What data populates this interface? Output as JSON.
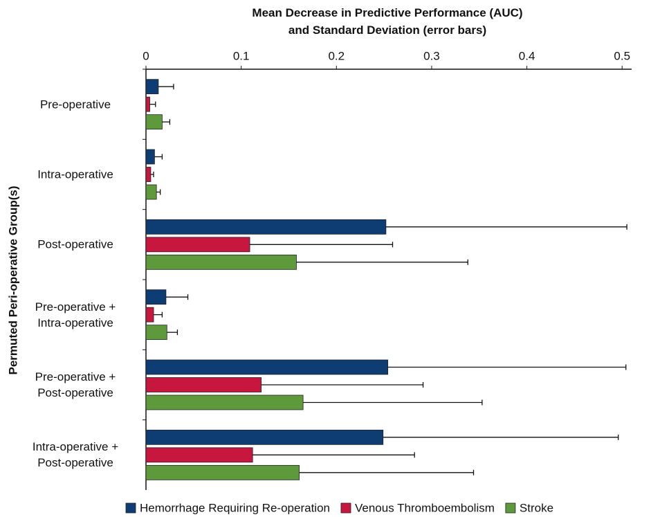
{
  "chart_data": {
    "type": "hbar-error",
    "title": "Mean Decrease in Predictive Performance (AUC)\nand Standard Deviation (error bars)",
    "y_label": "Permuted Peri-operative Group(s)",
    "categories": [
      "Pre-operative",
      "Intra-operative",
      "Post-operative",
      "Pre-operative +\nIntra-operative",
      "Pre-operative +\nPost-operative",
      "Intra-operative +\nPost-operative"
    ],
    "series": [
      {
        "name": "Hemorrhage Requiring Re-operation",
        "color": "#0e3d73",
        "values": [
          0.013,
          0.009,
          0.252,
          0.021,
          0.254,
          0.249
        ],
        "errors": [
          0.016,
          0.008,
          0.253,
          0.023,
          0.25,
          0.247
        ]
      },
      {
        "name": "Venous Thromboembolism",
        "color": "#c8173f",
        "values": [
          0.004,
          0.005,
          0.109,
          0.008,
          0.121,
          0.112
        ],
        "errors": [
          0.006,
          0.003,
          0.15,
          0.009,
          0.17,
          0.17
        ]
      },
      {
        "name": "Stroke",
        "color": "#5e9a3c",
        "values": [
          0.017,
          0.011,
          0.158,
          0.022,
          0.165,
          0.161
        ],
        "errors": [
          0.008,
          0.004,
          0.18,
          0.011,
          0.188,
          0.183
        ]
      }
    ],
    "xlim": [
      0,
      0.51
    ],
    "xticks": [
      0,
      0.1,
      0.2,
      0.3,
      0.4,
      0.5
    ]
  }
}
